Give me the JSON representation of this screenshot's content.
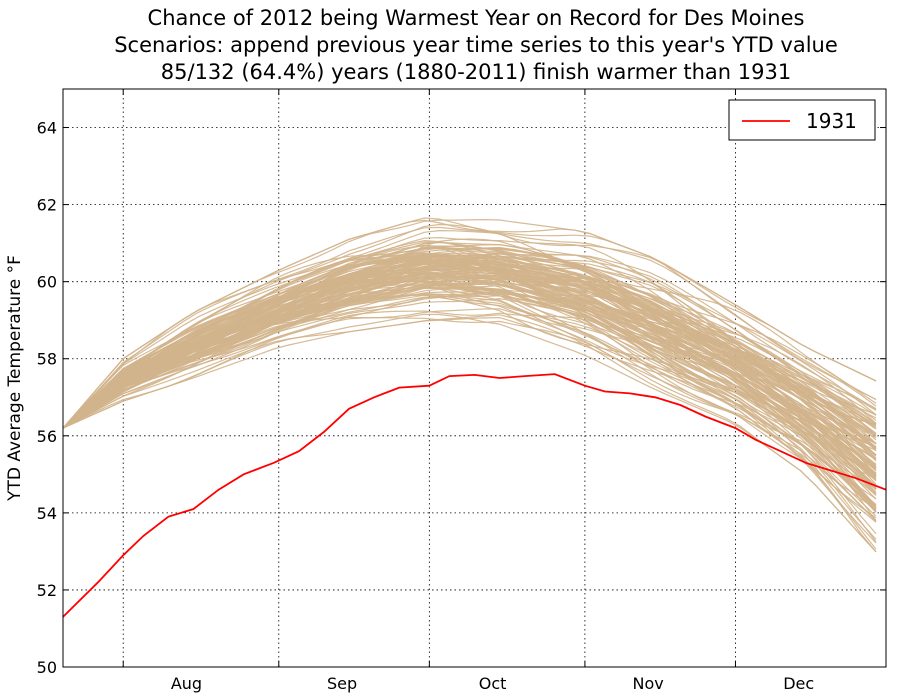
{
  "chart_data": {
    "type": "line",
    "title": [
      "Chance of 2012 being Warmest Year on Record for Des Moines",
      "Scenarios: append previous year time series to this year's YTD value",
      "85/132 (64.4%) years (1880-2011) finish warmer than 1931"
    ],
    "ylabel": "YTD Average Temperature °F",
    "xlabel": "",
    "x_ticks": [
      "Aug",
      "Sep",
      "Oct",
      "Nov",
      "Dec"
    ],
    "y_ticks": [
      50,
      52,
      54,
      56,
      58,
      60,
      62,
      64
    ],
    "xlim": [
      "2012-07-20",
      "2012-12-31"
    ],
    "ylim": [
      50,
      65
    ],
    "grid": true,
    "legend": {
      "placement": "top-right",
      "entries": [
        "1931"
      ]
    },
    "colors": {
      "highlight": "#ff0000",
      "scenarios": "#d2b48c"
    },
    "series": [
      {
        "name": "1931",
        "color": "#ff0000",
        "x": [
          "2012-07-20",
          "2012-07-27",
          "2012-08-01",
          "2012-08-05",
          "2012-08-10",
          "2012-08-15",
          "2012-08-20",
          "2012-08-25",
          "2012-08-31",
          "2012-09-05",
          "2012-09-10",
          "2012-09-15",
          "2012-09-20",
          "2012-09-25",
          "2012-10-01",
          "2012-10-05",
          "2012-10-10",
          "2012-10-15",
          "2012-10-20",
          "2012-10-26",
          "2012-11-01",
          "2012-11-05",
          "2012-11-10",
          "2012-11-15",
          "2012-11-20",
          "2012-11-25",
          "2012-12-01",
          "2012-12-05",
          "2012-12-10",
          "2012-12-15",
          "2012-12-20",
          "2012-12-25",
          "2012-12-31"
        ],
        "values": [
          51.3,
          52.2,
          52.9,
          53.4,
          53.9,
          54.1,
          54.6,
          55.0,
          55.3,
          55.6,
          56.1,
          56.7,
          57.0,
          57.25,
          57.3,
          57.55,
          57.58,
          57.5,
          57.55,
          57.6,
          57.3,
          57.15,
          57.1,
          57.0,
          56.8,
          56.5,
          56.2,
          55.9,
          55.6,
          55.3,
          55.1,
          54.9,
          54.6
        ]
      }
    ],
    "scenario_summary": {
      "count": 132,
      "years": "1880-2011",
      "start_value": 56.2,
      "x": [
        "2012-07-20",
        "2012-08-01",
        "2012-08-15",
        "2012-09-01",
        "2012-09-15",
        "2012-10-01",
        "2012-10-15",
        "2012-11-01",
        "2012-11-15",
        "2012-12-01",
        "2012-12-15",
        "2012-12-31"
      ],
      "low": [
        56.2,
        56.9,
        57.5,
        58.3,
        58.7,
        59.0,
        58.9,
        58.1,
        57.2,
        56.3,
        55.0,
        52.7
      ],
      "high": [
        56.2,
        58.0,
        59.2,
        60.3,
        61.1,
        61.7,
        61.6,
        61.3,
        60.6,
        59.4,
        58.3,
        57.3
      ]
    }
  }
}
